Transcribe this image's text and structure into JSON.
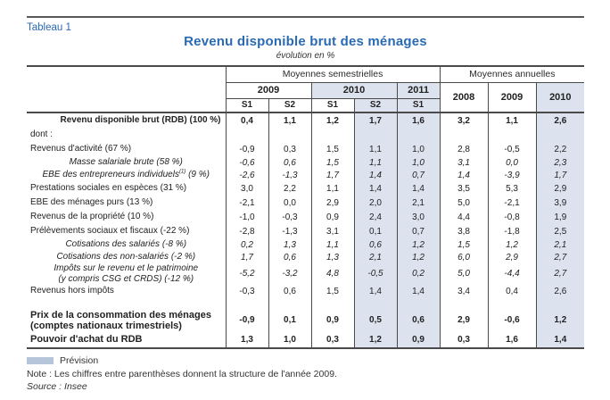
{
  "page": {
    "tableau_label": "Tableau 1",
    "title": "Revenu disponible brut des ménages",
    "subtitle": "évolution en %"
  },
  "table": {
    "groups": {
      "semi": "Moyennes semestrielles",
      "annual": "Moyennes annuelles"
    },
    "semi_years": [
      "2009",
      "2010",
      "2011"
    ],
    "semi_subs": [
      "S1",
      "S2",
      "S1",
      "S2",
      "S1"
    ],
    "annual_years": [
      "2008",
      "2009",
      "2010"
    ],
    "shaded_value_cols": [
      3,
      4,
      7
    ],
    "rows": [
      {
        "label": "Revenu disponible brut (RDB) (100 %)",
        "style": "bold-right",
        "values": [
          "0,4",
          "1,1",
          "1,2",
          "1,7",
          "1,6",
          "3,2",
          "1,1",
          "2,6"
        ]
      },
      {
        "label": "dont :",
        "style": "plain",
        "values": [
          "",
          "",
          "",
          "",
          "",
          "",
          "",
          ""
        ]
      },
      {
        "label": "Revenus d'activité (67 %)",
        "style": "plain",
        "values": [
          "-0,9",
          "0,3",
          "1,5",
          "1,1",
          "1,0",
          "2,8",
          "-0,5",
          "2,2"
        ]
      },
      {
        "label": "Masse salariale brute (58 %)",
        "style": "italic",
        "values": [
          "-0,6",
          "0,6",
          "1,5",
          "1,1",
          "1,0",
          "3,1",
          "0,0",
          "2,3"
        ]
      },
      {
        "label": "EBE des entrepreneurs individuels",
        "sup": "(1)",
        "label_suffix": " (9 %)",
        "style": "italic",
        "values": [
          "-2,6",
          "-1,3",
          "1,7",
          "1,4",
          "0,7",
          "1,4",
          "-3,9",
          "1,7"
        ]
      },
      {
        "label": "Prestations sociales en espèces (31 %)",
        "style": "plain",
        "values": [
          "3,0",
          "2,2",
          "1,1",
          "1,4",
          "1,4",
          "3,5",
          "5,3",
          "2,9"
        ]
      },
      {
        "label": "EBE des ménages purs (13 %)",
        "style": "plain",
        "values": [
          "-2,1",
          "0,0",
          "2,9",
          "2,0",
          "2,1",
          "5,0",
          "-2,1",
          "3,9"
        ]
      },
      {
        "label": "Revenus de la propriété (10 %)",
        "style": "plain",
        "values": [
          "-1,0",
          "-0,3",
          "0,9",
          "2,4",
          "3,0",
          "4,4",
          "-0,8",
          "1,9"
        ]
      },
      {
        "label": "Prélèvements sociaux et fiscaux (-22 %)",
        "style": "plain",
        "values": [
          "-2,8",
          "-1,3",
          "3,1",
          "0,1",
          "0,7",
          "3,8",
          "-1,8",
          "2,5"
        ]
      },
      {
        "label": "Cotisations des salariés (-8 %)",
        "style": "italic",
        "values": [
          "0,2",
          "1,3",
          "1,1",
          "0,6",
          "1,2",
          "1,5",
          "1,2",
          "2,1"
        ]
      },
      {
        "label": "Cotisations des  non-salariés (-2 %)",
        "style": "italic",
        "values": [
          "1,7",
          "0,6",
          "1,3",
          "2,1",
          "1,2",
          "6,0",
          "2,9",
          "2,7"
        ]
      },
      {
        "label": "Impôts sur le revenu et le patrimoine",
        "label2": "(y compris CSG et CRDS) (-12 %)",
        "style": "italic",
        "values": [
          "-5,2",
          "-3,2",
          "4,8",
          "-0,5",
          "0,2",
          "5,0",
          "-4,4",
          "2,7"
        ]
      },
      {
        "label": "Revenus hors impôts",
        "style": "plain",
        "values": [
          "-0,3",
          "0,6",
          "1,5",
          "1,4",
          "1,4",
          "3,4",
          "0,4",
          "2,6"
        ]
      },
      {
        "label": "",
        "style": "spacer",
        "values": [
          "",
          "",
          "",
          "",
          "",
          "",
          "",
          ""
        ]
      },
      {
        "label": "Prix de la consommation des ménages",
        "label2": "(comptes nationaux trimestriels)",
        "style": "bold-left",
        "values": [
          "-0,9",
          "0,1",
          "0,9",
          "0,5",
          "0,6",
          "2,9",
          "-0,6",
          "1,2"
        ]
      },
      {
        "label": "Pouvoir d'achat du RDB",
        "style": "bold-left",
        "values": [
          "1,3",
          "1,0",
          "0,3",
          "1,2",
          "0,9",
          "0,3",
          "1,6",
          "1,4"
        ]
      }
    ]
  },
  "footer": {
    "legend": "Prévision",
    "note": "Note : Les chiffres entre parenthèses donnent la structure de l'année 2009.",
    "source": "Source : Insee"
  },
  "colors": {
    "accent_blue": "#2a6ab4",
    "shade": "#dde3ee",
    "legend_swatch": "#b7c5da"
  }
}
